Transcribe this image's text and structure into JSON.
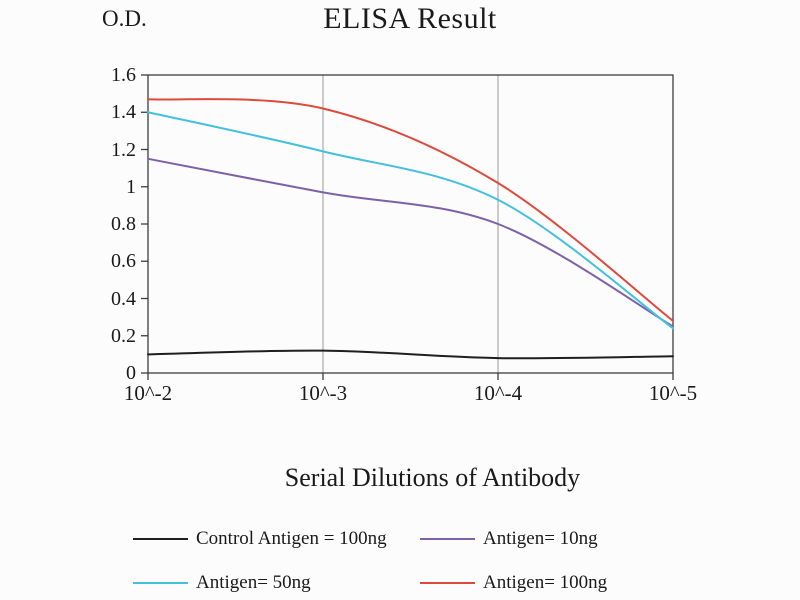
{
  "page": {
    "background": "#fcfcfc"
  },
  "chart_data": {
    "type": "line",
    "title": "ELISA Result",
    "ylabel": "O.D.",
    "xlabel": "Serial Dilutions of Antibody",
    "categories": [
      "10^-2",
      "10^-3",
      "10^-4",
      "10^-5"
    ],
    "y_ticks": [
      "0",
      "0.2",
      "0.4",
      "0.6",
      "0.8",
      "1",
      "1.2",
      "1.4",
      "1.6"
    ],
    "ylim": [
      0,
      1.6
    ],
    "grid": "vertical-only",
    "legend_position": "bottom",
    "border_color": "#3c3c3c",
    "grid_color": "#9a9a9a",
    "series": [
      {
        "name": "Control Antigen = 100ng",
        "color": "#1f1f1f",
        "values": [
          0.1,
          0.12,
          0.08,
          0.09
        ]
      },
      {
        "name": "Antigen= 10ng",
        "color": "#7e62a8",
        "values": [
          1.15,
          0.97,
          0.8,
          0.25
        ]
      },
      {
        "name": "Antigen= 50ng",
        "color": "#44c0df",
        "values": [
          1.4,
          1.19,
          0.93,
          0.24
        ]
      },
      {
        "name": "Antigen= 100ng",
        "color": "#dd4a3c",
        "values": [
          1.47,
          1.42,
          1.02,
          0.28
        ]
      }
    ]
  }
}
